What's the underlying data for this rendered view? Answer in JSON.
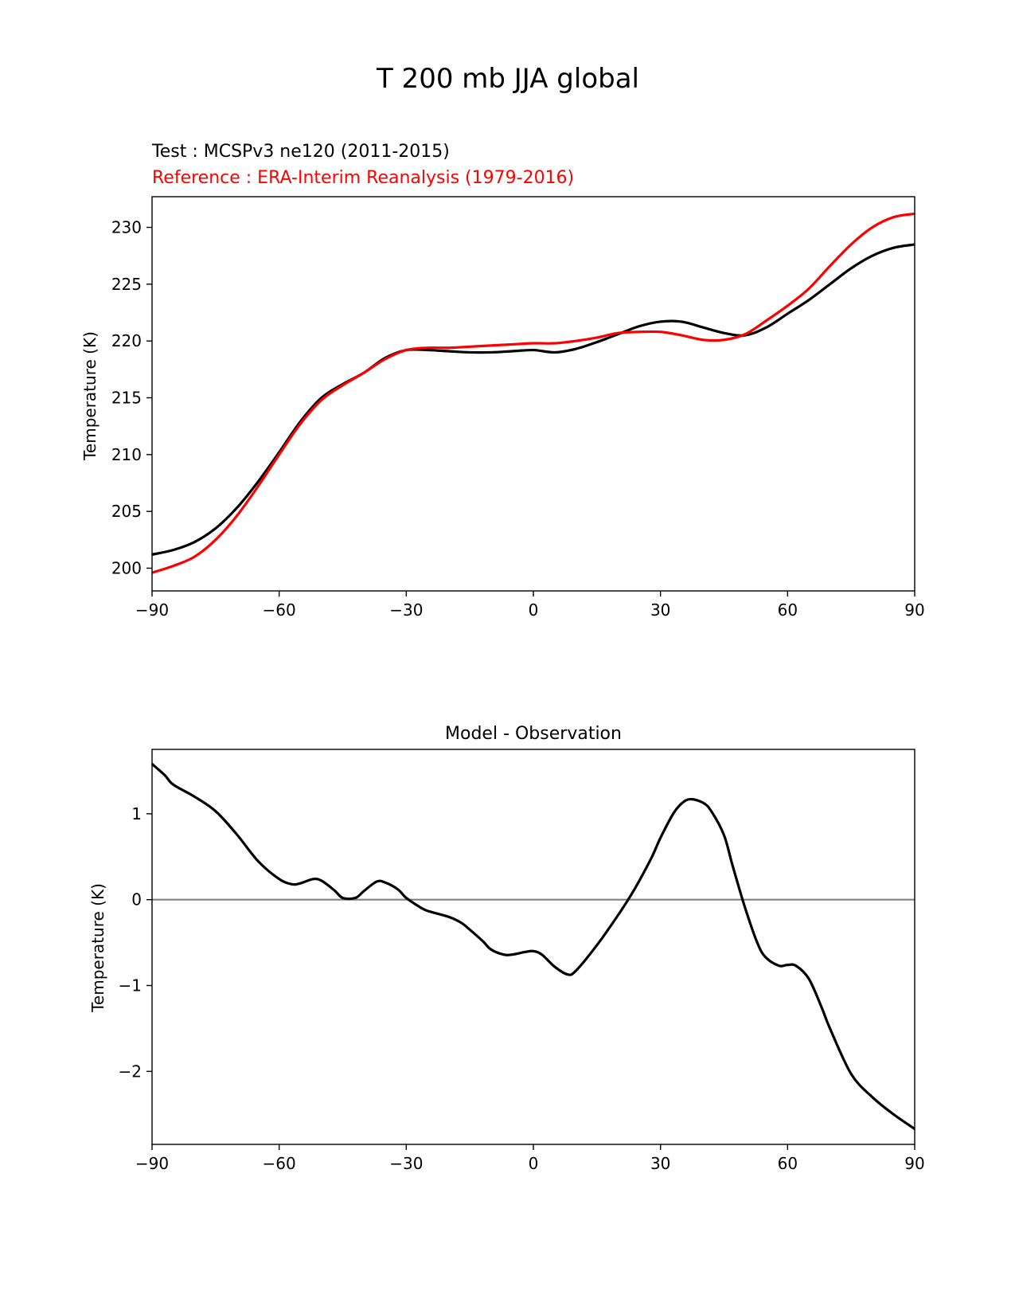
{
  "figure_title": "T 200 mb JJA global",
  "chart_data": [
    {
      "type": "line",
      "test_label": "Test : MCSPv3 ne120 (2011-2015)",
      "reference_label": "Reference : ERA-Interim Reanalysis (1979-2016)",
      "xlabel": "",
      "ylabel": "Temperature (K)",
      "xlim": [
        -90,
        90
      ],
      "ylim": [
        198,
        232.7
      ],
      "xticks": [
        -90,
        -60,
        -30,
        0,
        30,
        60,
        90
      ],
      "xtick_labels": [
        "−90",
        "−60",
        "−30",
        "0",
        "30",
        "60",
        "90"
      ],
      "yticks": [
        200,
        205,
        210,
        215,
        220,
        225,
        230
      ],
      "ytick_labels": [
        "200",
        "205",
        "210",
        "215",
        "220",
        "225",
        "230"
      ],
      "series": [
        {
          "name": "Test",
          "color": "#000000",
          "x": [
            -90,
            -85,
            -80,
            -75,
            -70,
            -65,
            -60,
            -55,
            -50,
            -45,
            -40,
            -35,
            -30,
            -25,
            -20,
            -15,
            -10,
            -5,
            0,
            5,
            10,
            15,
            20,
            25,
            30,
            35,
            40,
            45,
            50,
            55,
            60,
            65,
            70,
            75,
            80,
            85,
            90
          ],
          "y": [
            201.2,
            201.6,
            202.3,
            203.5,
            205.3,
            207.6,
            210.2,
            212.9,
            215.0,
            216.2,
            217.2,
            218.5,
            219.2,
            219.2,
            219.1,
            219.0,
            219.0,
            219.1,
            219.2,
            219.0,
            219.3,
            219.9,
            220.6,
            221.3,
            221.7,
            221.7,
            221.2,
            220.7,
            220.5,
            221.2,
            222.4,
            223.6,
            225.0,
            226.4,
            227.5,
            228.2,
            228.5
          ]
        },
        {
          "name": "Reference",
          "color": "#ff0000",
          "x": [
            -90,
            -85,
            -80,
            -75,
            -70,
            -65,
            -60,
            -55,
            -50,
            -45,
            -40,
            -35,
            -30,
            -25,
            -20,
            -15,
            -10,
            -5,
            0,
            5,
            10,
            15,
            20,
            25,
            30,
            35,
            40,
            45,
            50,
            55,
            60,
            65,
            70,
            75,
            80,
            85,
            90
          ],
          "y": [
            199.6,
            200.2,
            201.0,
            202.5,
            204.6,
            207.2,
            210.0,
            212.7,
            214.8,
            216.1,
            217.2,
            218.4,
            219.2,
            219.4,
            219.4,
            219.5,
            219.6,
            219.7,
            219.8,
            219.8,
            220.0,
            220.3,
            220.7,
            220.8,
            220.8,
            220.5,
            220.1,
            220.1,
            220.6,
            221.8,
            223.1,
            224.6,
            226.6,
            228.5,
            230.0,
            230.9,
            231.2
          ]
        }
      ]
    },
    {
      "type": "line",
      "title": "Model - Observation",
      "xlabel": "",
      "ylabel": "Temperature (K)",
      "xlim": [
        -90,
        90
      ],
      "ylim": [
        -2.85,
        1.75
      ],
      "xticks": [
        -90,
        -60,
        -30,
        0,
        30,
        60,
        90
      ],
      "xtick_labels": [
        "−90",
        "−60",
        "−30",
        "0",
        "30",
        "60",
        "90"
      ],
      "yticks": [
        -2,
        -1,
        0,
        1
      ],
      "ytick_labels": [
        "−2",
        "−1",
        "0",
        "1"
      ],
      "zero_line_color": "#808080",
      "series": [
        {
          "name": "Model - Observation",
          "color": "#000000",
          "x": [
            -90,
            -87,
            -85,
            -80,
            -75,
            -70,
            -65,
            -60,
            -57,
            -55,
            -52,
            -50,
            -47,
            -45,
            -42,
            -40,
            -37,
            -35,
            -32,
            -30,
            -27,
            -25,
            -20,
            -17,
            -15,
            -12,
            -10,
            -7,
            -5,
            -2,
            0,
            2,
            5,
            8,
            10,
            15,
            20,
            23,
            25,
            28,
            30,
            33,
            35,
            37,
            40,
            42,
            45,
            47,
            50,
            53,
            55,
            58,
            60,
            62,
            65,
            68,
            70,
            75,
            80,
            85,
            90
          ],
          "y": [
            1.58,
            1.45,
            1.34,
            1.2,
            1.03,
            0.76,
            0.45,
            0.24,
            0.18,
            0.19,
            0.24,
            0.22,
            0.11,
            0.02,
            0.02,
            0.1,
            0.21,
            0.2,
            0.12,
            0.02,
            -0.08,
            -0.13,
            -0.2,
            -0.27,
            -0.35,
            -0.48,
            -0.58,
            -0.64,
            -0.64,
            -0.61,
            -0.6,
            -0.64,
            -0.78,
            -0.87,
            -0.83,
            -0.53,
            -0.18,
            0.05,
            0.22,
            0.5,
            0.72,
            1.0,
            1.12,
            1.17,
            1.13,
            1.03,
            0.75,
            0.4,
            -0.1,
            -0.52,
            -0.68,
            -0.77,
            -0.76,
            -0.77,
            -0.92,
            -1.25,
            -1.5,
            -2.03,
            -2.3,
            -2.5,
            -2.67
          ]
        }
      ]
    }
  ]
}
